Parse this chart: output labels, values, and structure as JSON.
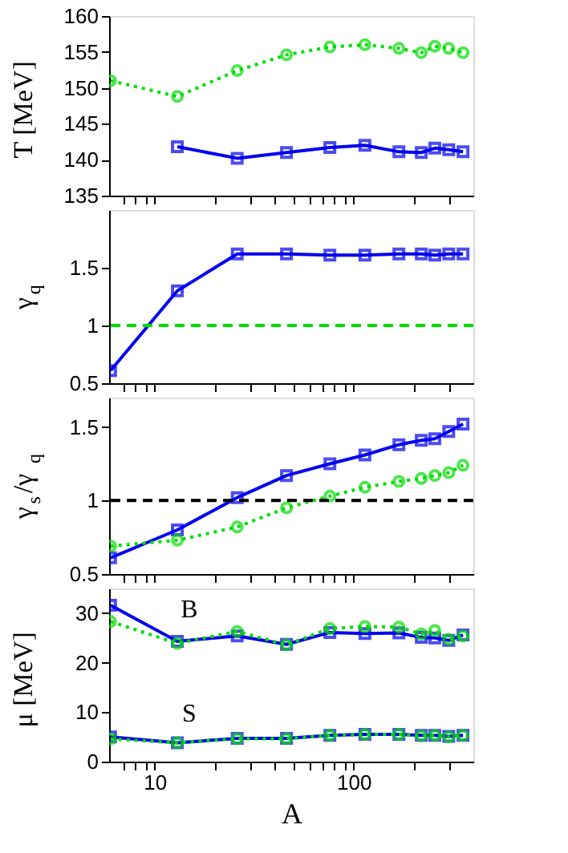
{
  "chart_data": [
    {
      "type": "line",
      "ylabel": "T [MeV]",
      "x": [
        6,
        13,
        26,
        46,
        76,
        114,
        169,
        219,
        256,
        301,
        355
      ],
      "xlim": [
        5.9,
        400
      ],
      "xticks": [
        {
          "value": 7,
          "label": null
        },
        {
          "value": 8,
          "label": null
        },
        {
          "value": 9,
          "label": null
        },
        10,
        {
          "value": 20,
          "label": null
        },
        {
          "value": 30,
          "label": null
        },
        {
          "value": 40,
          "label": null
        },
        {
          "value": 50,
          "label": null
        },
        {
          "value": 60,
          "label": null
        },
        {
          "value": 70,
          "label": null
        },
        {
          "value": 80,
          "label": null
        },
        {
          "value": 90,
          "label": null
        },
        100,
        {
          "value": 200,
          "label": null
        },
        {
          "value": 300,
          "label": null
        }
      ],
      "log": "x",
      "ylim": [
        135,
        160
      ],
      "yticks": [
        135,
        140,
        145,
        150,
        155,
        160
      ],
      "tick_labels": "y",
      "grid": false,
      "series": [
        {
          "color": "#0000ee",
          "marker": "square",
          "line_style": "solid",
          "values": [
            null,
            141.8,
            140.2,
            141.0,
            141.7,
            142.0,
            141.1,
            141.0,
            141.6,
            141.4,
            141.1
          ]
        },
        {
          "color": "#00dd00",
          "marker": "circle",
          "line_style": "dotted",
          "values": [
            151.0,
            148.8,
            152.4,
            154.6,
            155.7,
            156.0,
            155.5,
            154.9,
            155.8,
            155.5,
            154.9
          ]
        }
      ]
    },
    {
      "type": "line",
      "ylabel": "γ$_{q}$",
      "x": [
        6,
        13,
        26,
        46,
        76,
        114,
        169,
        219,
        256,
        301,
        355
      ],
      "xlim": [
        5.9,
        400
      ],
      "xticks": [
        {
          "value": 7,
          "label": null
        },
        {
          "value": 8,
          "label": null
        },
        {
          "value": 9,
          "label": null
        },
        10,
        {
          "value": 20,
          "label": null
        },
        {
          "value": 30,
          "label": null
        },
        {
          "value": 40,
          "label": null
        },
        {
          "value": 50,
          "label": null
        },
        {
          "value": 60,
          "label": null
        },
        {
          "value": 70,
          "label": null
        },
        {
          "value": 80,
          "label": null
        },
        {
          "value": 90,
          "label": null
        },
        100,
        {
          "value": 200,
          "label": null
        },
        {
          "value": 300,
          "label": null
        }
      ],
      "log": "x",
      "ylim": [
        0.5,
        2.0
      ],
      "yticks": [
        0.5,
        1,
        1.5
      ],
      "tick_labels": "y",
      "grid": false,
      "series": [
        {
          "color": "#0000ee",
          "marker": "square",
          "line_style": "solid",
          "values": [
            0.61,
            1.3,
            1.62,
            1.62,
            1.61,
            1.61,
            1.62,
            1.62,
            1.61,
            1.62,
            1.62
          ]
        }
      ],
      "ref_lines": [
        {
          "axis": "y",
          "value": 1,
          "color": "#00dd00",
          "line_style": "dashed"
        }
      ]
    },
    {
      "type": "line",
      "ylabel": "γ$_{s}$/γ$_{q}$",
      "x": [
        6,
        13,
        26,
        46,
        76,
        114,
        169,
        219,
        256,
        301,
        355
      ],
      "xlim": [
        5.9,
        400
      ],
      "xticks": [
        {
          "value": 7,
          "label": null
        },
        {
          "value": 8,
          "label": null
        },
        {
          "value": 9,
          "label": null
        },
        10,
        {
          "value": 20,
          "label": null
        },
        {
          "value": 30,
          "label": null
        },
        {
          "value": 40,
          "label": null
        },
        {
          "value": 50,
          "label": null
        },
        {
          "value": 60,
          "label": null
        },
        {
          "value": 70,
          "label": null
        },
        {
          "value": 80,
          "label": null
        },
        {
          "value": 90,
          "label": null
        },
        100,
        {
          "value": 200,
          "label": null
        },
        {
          "value": 300,
          "label": null
        }
      ],
      "log": "x",
      "ylim": [
        0.5,
        1.7
      ],
      "yticks": [
        0.5,
        1,
        1.5
      ],
      "tick_labels": "y",
      "grid": false,
      "series": [
        {
          "color": "#0000ee",
          "marker": "square",
          "line_style": "solid",
          "values": [
            0.61,
            0.8,
            1.02,
            1.17,
            1.25,
            1.31,
            1.38,
            1.41,
            1.42,
            1.47,
            1.52
          ]
        },
        {
          "color": "#00dd00",
          "marker": "circle",
          "line_style": "dotted",
          "values": [
            0.69,
            0.73,
            0.82,
            0.95,
            1.03,
            1.09,
            1.13,
            1.15,
            1.17,
            1.19,
            1.24
          ]
        }
      ],
      "ref_lines": [
        {
          "axis": "y",
          "value": 1,
          "color": "#000000",
          "line_style": "dashed"
        }
      ]
    },
    {
      "type": "line",
      "ylabel": "μ [MeV]",
      "xlabel": "A",
      "x": [
        6,
        13,
        26,
        46,
        76,
        114,
        169,
        219,
        256,
        301,
        355
      ],
      "xlim": [
        5.9,
        400
      ],
      "xticks": [
        {
          "value": 7,
          "label": null
        },
        {
          "value": 8,
          "label": null
        },
        {
          "value": 9,
          "label": null
        },
        10,
        {
          "value": 20,
          "label": null
        },
        {
          "value": 30,
          "label": null
        },
        {
          "value": 40,
          "label": null
        },
        {
          "value": 50,
          "label": null
        },
        {
          "value": 60,
          "label": null
        },
        {
          "value": 70,
          "label": null
        },
        {
          "value": 80,
          "label": null
        },
        {
          "value": 90,
          "label": null
        },
        100,
        {
          "value": 200,
          "label": null
        },
        {
          "value": 300,
          "label": null
        }
      ],
      "log": "x",
      "ylim": [
        0,
        35
      ],
      "yticks": [
        0,
        10,
        20,
        30
      ],
      "grid": false,
      "series": [
        {
          "color": "#0000ee",
          "marker": "square",
          "line_style": "solid",
          "values": [
            31.6,
            24.3,
            25.4,
            23.7,
            26.1,
            25.9,
            26.0,
            25.1,
            25.0,
            24.5,
            25.6
          ]
        },
        {
          "color": "#00dd00",
          "marker": "circle",
          "line_style": "dotted",
          "values": [
            28.3,
            23.9,
            26.3,
            23.6,
            26.9,
            27.3,
            27.2,
            25.8,
            26.5,
            24.7,
            25.4
          ]
        },
        {
          "color": "#0000ee",
          "marker": "square",
          "line_style": "solid",
          "values": [
            5.0,
            3.8,
            4.7,
            4.7,
            5.3,
            5.5,
            5.5,
            5.3,
            5.3,
            5.1,
            5.3
          ]
        },
        {
          "color": "#00dd00",
          "marker": "circle",
          "line_style": "dotted",
          "values": [
            4.6,
            3.8,
            4.6,
            4.6,
            5.3,
            5.5,
            5.5,
            5.2,
            5.3,
            5.0,
            5.3
          ]
        }
      ],
      "annotations": [
        "B",
        "S"
      ]
    }
  ]
}
